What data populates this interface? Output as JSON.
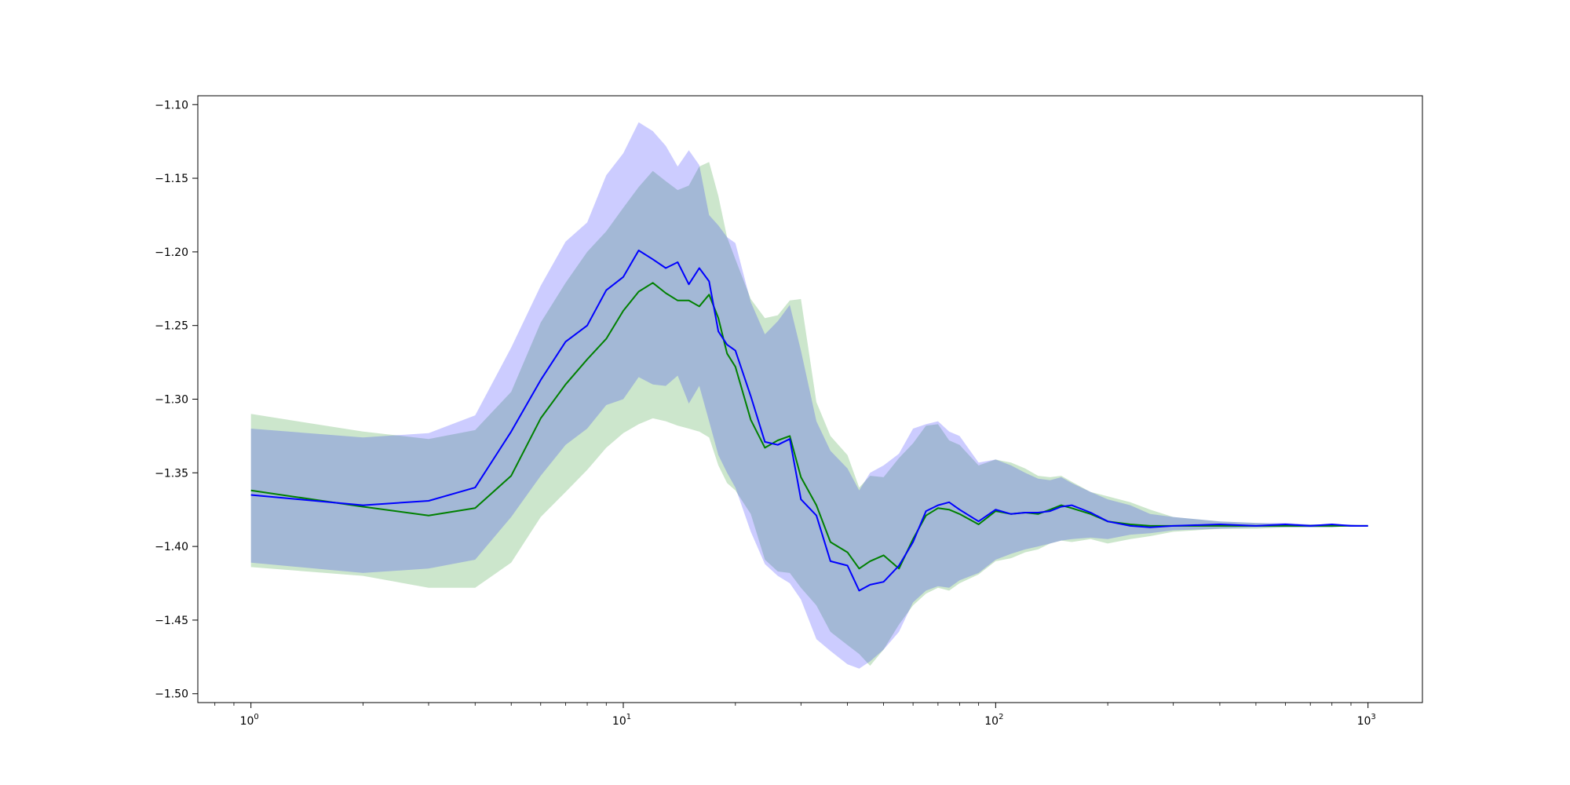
{
  "chart_data": {
    "type": "line",
    "title": "",
    "xlabel": "",
    "ylabel": "",
    "x_scale": "log",
    "xlim": [
      0.72,
      1400
    ],
    "ylim": [
      -1.506,
      -1.094
    ],
    "grid": false,
    "legend": "none",
    "x_ticks": [
      {
        "value": 1,
        "base": "10",
        "exp": "0"
      },
      {
        "value": 10,
        "base": "10",
        "exp": "1"
      },
      {
        "value": 100,
        "base": "10",
        "exp": "2"
      },
      {
        "value": 1000,
        "base": "10",
        "exp": "3"
      }
    ],
    "y_ticks": [
      {
        "value": -1.1,
        "label": "−1.10"
      },
      {
        "value": -1.15,
        "label": "−1.15"
      },
      {
        "value": -1.2,
        "label": "−1.20"
      },
      {
        "value": -1.25,
        "label": "−1.25"
      },
      {
        "value": -1.3,
        "label": "−1.30"
      },
      {
        "value": -1.35,
        "label": "−1.35"
      },
      {
        "value": -1.4,
        "label": "−1.40"
      },
      {
        "value": -1.45,
        "label": "−1.45"
      },
      {
        "value": -1.5,
        "label": "−1.50"
      }
    ],
    "series": [
      {
        "color": "#008000",
        "band_color": "#008000",
        "band_opacity": 0.2,
        "x": [
          1,
          2,
          3,
          4,
          5,
          6,
          7,
          8,
          9,
          10,
          11,
          12,
          13,
          14,
          15,
          16,
          17,
          18,
          19,
          20,
          22,
          24,
          26,
          28,
          30,
          33,
          36,
          40,
          43,
          46,
          50,
          55,
          60,
          65,
          70,
          75,
          80,
          90,
          100,
          110,
          120,
          130,
          140,
          150,
          160,
          180,
          200,
          230,
          260,
          300,
          400,
          500,
          600,
          700,
          800,
          900,
          1000
        ],
        "y": [
          -1.362,
          -1.373,
          -1.379,
          -1.374,
          -1.352,
          -1.313,
          -1.29,
          -1.273,
          -1.259,
          -1.24,
          -1.227,
          -1.221,
          -1.228,
          -1.233,
          -1.233,
          -1.237,
          -1.229,
          -1.245,
          -1.269,
          -1.278,
          -1.314,
          -1.333,
          -1.328,
          -1.325,
          -1.353,
          -1.372,
          -1.397,
          -1.404,
          -1.415,
          -1.41,
          -1.406,
          -1.415,
          -1.395,
          -1.379,
          -1.374,
          -1.375,
          -1.378,
          -1.385,
          -1.376,
          -1.378,
          -1.377,
          -1.378,
          -1.375,
          -1.372,
          -1.374,
          -1.378,
          -1.383,
          -1.385,
          -1.386,
          -1.386,
          -1.386,
          -1.386,
          -1.386,
          -1.386,
          -1.386,
          -1.386,
          -1.386
        ],
        "upper": [
          -1.31,
          -1.322,
          -1.327,
          -1.321,
          -1.295,
          -1.248,
          -1.221,
          -1.2,
          -1.186,
          -1.17,
          -1.156,
          -1.145,
          -1.152,
          -1.158,
          -1.155,
          -1.142,
          -1.139,
          -1.162,
          -1.19,
          -1.205,
          -1.232,
          -1.245,
          -1.243,
          -1.233,
          -1.232,
          -1.302,
          -1.325,
          -1.338,
          -1.36,
          -1.352,
          -1.353,
          -1.34,
          -1.33,
          -1.318,
          -1.317,
          -1.328,
          -1.331,
          -1.345,
          -1.341,
          -1.343,
          -1.347,
          -1.352,
          -1.353,
          -1.352,
          -1.356,
          -1.363,
          -1.366,
          -1.37,
          -1.375,
          -1.38,
          -1.383,
          -1.384,
          -1.385,
          -1.385,
          -1.385,
          -1.386,
          -1.386
        ],
        "lower": [
          -1.414,
          -1.42,
          -1.428,
          -1.428,
          -1.411,
          -1.38,
          -1.363,
          -1.348,
          -1.333,
          -1.323,
          -1.317,
          -1.313,
          -1.315,
          -1.318,
          -1.32,
          -1.322,
          -1.326,
          -1.345,
          -1.357,
          -1.362,
          -1.378,
          -1.409,
          -1.417,
          -1.418,
          -1.428,
          -1.44,
          -1.458,
          -1.467,
          -1.473,
          -1.481,
          -1.47,
          -1.453,
          -1.44,
          -1.432,
          -1.428,
          -1.43,
          -1.425,
          -1.419,
          -1.41,
          -1.408,
          -1.404,
          -1.402,
          -1.398,
          -1.396,
          -1.397,
          -1.395,
          -1.398,
          -1.395,
          -1.393,
          -1.39,
          -1.388,
          -1.388,
          -1.387,
          -1.387,
          -1.387,
          -1.386,
          -1.386
        ]
      },
      {
        "color": "#0000ff",
        "band_color": "#0000ff",
        "band_opacity": 0.2,
        "x": [
          1,
          2,
          3,
          4,
          5,
          6,
          7,
          8,
          9,
          10,
          11,
          12,
          13,
          14,
          15,
          16,
          17,
          18,
          19,
          20,
          22,
          24,
          26,
          28,
          30,
          33,
          36,
          40,
          43,
          46,
          50,
          55,
          60,
          65,
          70,
          75,
          80,
          90,
          100,
          110,
          120,
          130,
          140,
          150,
          160,
          180,
          200,
          230,
          260,
          300,
          400,
          500,
          600,
          700,
          800,
          900,
          1000
        ],
        "y": [
          -1.365,
          -1.372,
          -1.369,
          -1.36,
          -1.322,
          -1.287,
          -1.261,
          -1.25,
          -1.226,
          -1.217,
          -1.199,
          -1.205,
          -1.211,
          -1.207,
          -1.222,
          -1.211,
          -1.22,
          -1.254,
          -1.263,
          -1.267,
          -1.298,
          -1.329,
          -1.331,
          -1.327,
          -1.368,
          -1.379,
          -1.41,
          -1.413,
          -1.43,
          -1.426,
          -1.424,
          -1.413,
          -1.397,
          -1.376,
          -1.372,
          -1.37,
          -1.375,
          -1.383,
          -1.375,
          -1.378,
          -1.377,
          -1.377,
          -1.376,
          -1.373,
          -1.372,
          -1.377,
          -1.383,
          -1.386,
          -1.387,
          -1.386,
          -1.385,
          -1.386,
          -1.385,
          -1.386,
          -1.385,
          -1.386,
          -1.386
        ],
        "upper": [
          -1.32,
          -1.326,
          -1.323,
          -1.311,
          -1.265,
          -1.223,
          -1.193,
          -1.18,
          -1.148,
          -1.133,
          -1.112,
          -1.118,
          -1.128,
          -1.142,
          -1.131,
          -1.141,
          -1.175,
          -1.182,
          -1.19,
          -1.194,
          -1.234,
          -1.256,
          -1.247,
          -1.236,
          -1.267,
          -1.315,
          -1.335,
          -1.347,
          -1.362,
          -1.35,
          -1.345,
          -1.337,
          -1.32,
          -1.317,
          -1.315,
          -1.322,
          -1.325,
          -1.343,
          -1.341,
          -1.345,
          -1.35,
          -1.354,
          -1.355,
          -1.353,
          -1.357,
          -1.363,
          -1.368,
          -1.372,
          -1.378,
          -1.38,
          -1.383,
          -1.384,
          -1.384,
          -1.385,
          -1.385,
          -1.385,
          -1.386
        ],
        "lower": [
          -1.411,
          -1.418,
          -1.415,
          -1.409,
          -1.38,
          -1.352,
          -1.331,
          -1.32,
          -1.304,
          -1.3,
          -1.285,
          -1.29,
          -1.291,
          -1.284,
          -1.303,
          -1.291,
          -1.315,
          -1.338,
          -1.35,
          -1.36,
          -1.39,
          -1.412,
          -1.42,
          -1.425,
          -1.436,
          -1.463,
          -1.471,
          -1.48,
          -1.483,
          -1.478,
          -1.47,
          -1.458,
          -1.438,
          -1.43,
          -1.427,
          -1.428,
          -1.423,
          -1.418,
          -1.409,
          -1.405,
          -1.402,
          -1.4,
          -1.398,
          -1.396,
          -1.395,
          -1.394,
          -1.395,
          -1.392,
          -1.391,
          -1.389,
          -1.388,
          -1.387,
          -1.387,
          -1.387,
          -1.387,
          -1.386,
          -1.386
        ]
      }
    ]
  }
}
